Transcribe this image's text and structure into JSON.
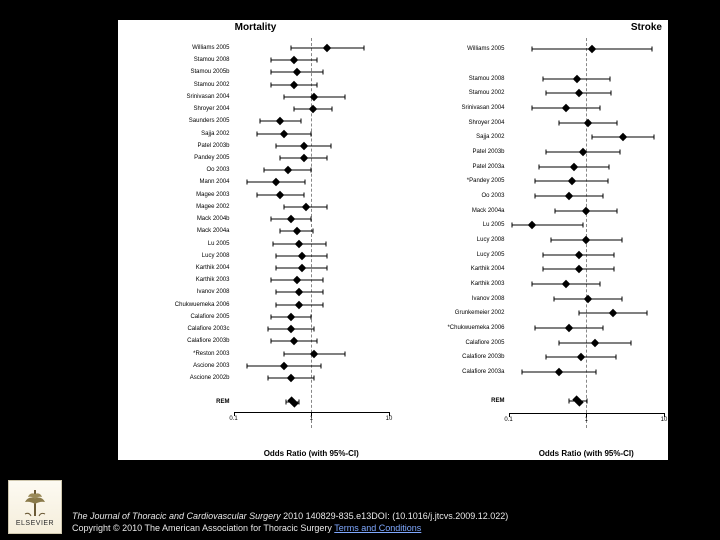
{
  "figure": {
    "background": "#ffffff",
    "panel_left": {
      "title": "Mortality",
      "xlabel": "Odds Ratio (with 95%-CI)",
      "log_range": [
        -1,
        1
      ],
      "ref_x": 1.0,
      "ticks": [
        {
          "v": 0.1,
          "label": "0.1"
        },
        {
          "v": 1,
          "label": "1"
        },
        {
          "v": 10,
          "label": "10"
        }
      ],
      "rows": [
        {
          "label": "Williams 2005",
          "or": 1.6,
          "lo": 0.55,
          "hi": 4.7
        },
        {
          "label": "Stamou 2008",
          "or": 0.6,
          "lo": 0.3,
          "hi": 1.2
        },
        {
          "label": "Stamou 2005b",
          "or": 0.65,
          "lo": 0.3,
          "hi": 1.4
        },
        {
          "label": "Stamou 2002",
          "or": 0.6,
          "lo": 0.3,
          "hi": 1.2
        },
        {
          "label": "Srinivasan 2004",
          "or": 1.1,
          "lo": 0.45,
          "hi": 2.7
        },
        {
          "label": "Shroyer 2004",
          "or": 1.05,
          "lo": 0.6,
          "hi": 1.85
        },
        {
          "label": "Saunders 2005",
          "or": 0.4,
          "lo": 0.22,
          "hi": 0.73
        },
        {
          "label": "Sajja 2002",
          "or": 0.45,
          "lo": 0.2,
          "hi": 1.0
        },
        {
          "label": "Patel 2003b",
          "or": 0.8,
          "lo": 0.35,
          "hi": 1.8
        },
        {
          "label": "Pandey 2005",
          "or": 0.8,
          "lo": 0.4,
          "hi": 1.6
        },
        {
          "label": "Oo 2003",
          "or": 0.5,
          "lo": 0.25,
          "hi": 1.0
        },
        {
          "label": "Mann 2004",
          "or": 0.35,
          "lo": 0.15,
          "hi": 0.82
        },
        {
          "label": "Magee 2003",
          "or": 0.4,
          "lo": 0.2,
          "hi": 0.8
        },
        {
          "label": "Magee 2002",
          "or": 0.85,
          "lo": 0.45,
          "hi": 1.6
        },
        {
          "label": "Mack 2004b",
          "or": 0.55,
          "lo": 0.3,
          "hi": 1.0
        },
        {
          "label": "Mack 2004a",
          "or": 0.65,
          "lo": 0.4,
          "hi": 1.05
        },
        {
          "label": "Lu 2005",
          "or": 0.7,
          "lo": 0.32,
          "hi": 1.55
        },
        {
          "label": "Lucy 2008",
          "or": 0.75,
          "lo": 0.35,
          "hi": 1.6
        },
        {
          "label": "Karthik 2004",
          "or": 0.75,
          "lo": 0.35,
          "hi": 1.6
        },
        {
          "label": "Karthik 2003",
          "or": 0.65,
          "lo": 0.3,
          "hi": 1.4
        },
        {
          "label": "Ivanov 2008",
          "or": 0.7,
          "lo": 0.35,
          "hi": 1.4
        },
        {
          "label": "Chukwuemeka 2006",
          "or": 0.7,
          "lo": 0.35,
          "hi": 1.4
        },
        {
          "label": "Calafiore 2005",
          "or": 0.55,
          "lo": 0.3,
          "hi": 1.0
        },
        {
          "label": "Calafiore 2003c",
          "or": 0.55,
          "lo": 0.28,
          "hi": 1.08
        },
        {
          "label": "Calafiore 2003b",
          "or": 0.6,
          "lo": 0.3,
          "hi": 1.2
        },
        {
          "label": "*Reston 2003",
          "or": 1.1,
          "lo": 0.45,
          "hi": 2.7
        },
        {
          "label": "Ascione 2003",
          "or": 0.45,
          "lo": 0.15,
          "hi": 1.35
        },
        {
          "label": "Ascione 2002b",
          "or": 0.55,
          "lo": 0.28,
          "hi": 1.08
        },
        {
          "gap": true
        },
        {
          "label": "REM",
          "or": 0.58,
          "lo": 0.48,
          "hi": 0.7,
          "summary": true
        }
      ]
    },
    "panel_right": {
      "title": "Stroke",
      "xlabel": "Odds Ratio (with 95%-CI)",
      "log_range": [
        -1,
        1
      ],
      "ref_x": 1.0,
      "ticks": [
        {
          "v": 0.1,
          "label": "0.1"
        },
        {
          "v": 1,
          "label": "1"
        },
        {
          "v": 10,
          "label": "10"
        }
      ],
      "rows": [
        {
          "label": "Williams 2005",
          "or": 1.2,
          "lo": 0.2,
          "hi": 7.0
        },
        {
          "gap": true
        },
        {
          "label": "Stamou 2008",
          "or": 0.75,
          "lo": 0.28,
          "hi": 2.0
        },
        {
          "label": "Stamou 2002",
          "or": 0.8,
          "lo": 0.3,
          "hi": 2.1
        },
        {
          "label": "Srinivasan 2004",
          "or": 0.55,
          "lo": 0.2,
          "hi": 1.5
        },
        {
          "label": "Shroyer 2004",
          "or": 1.05,
          "lo": 0.45,
          "hi": 2.45
        },
        {
          "label": "Sajja 2002",
          "or": 3.0,
          "lo": 1.2,
          "hi": 7.5
        },
        {
          "label": "Patel 2003b",
          "or": 0.9,
          "lo": 0.3,
          "hi": 2.7
        },
        {
          "label": "Patel 2003a",
          "or": 0.7,
          "lo": 0.25,
          "hi": 1.95
        },
        {
          "label": "*Pandey 2005",
          "or": 0.65,
          "lo": 0.22,
          "hi": 1.9
        },
        {
          "label": "Oo 2003",
          "or": 0.6,
          "lo": 0.22,
          "hi": 1.65
        },
        {
          "label": "Mack 2004a",
          "or": 1.0,
          "lo": 0.4,
          "hi": 2.5
        },
        {
          "label": "Lu 2005",
          "or": 0.2,
          "lo": 0.11,
          "hi": 0.9
        },
        {
          "label": "Lucy 2008",
          "or": 1.0,
          "lo": 0.35,
          "hi": 2.85
        },
        {
          "label": "Lucy 2005",
          "or": 0.8,
          "lo": 0.28,
          "hi": 2.3
        },
        {
          "label": "Karthik 2004",
          "or": 0.8,
          "lo": 0.28,
          "hi": 2.3
        },
        {
          "label": "Karthik 2003",
          "or": 0.55,
          "lo": 0.2,
          "hi": 1.5
        },
        {
          "label": "Ivanov 2008",
          "or": 1.05,
          "lo": 0.38,
          "hi": 2.9
        },
        {
          "label": "Grunkemeier 2002",
          "or": 2.2,
          "lo": 0.8,
          "hi": 6.05
        },
        {
          "label": "*Chukwuemeka 2006",
          "or": 0.6,
          "lo": 0.22,
          "hi": 1.65
        },
        {
          "label": "Calafiore 2005",
          "or": 1.3,
          "lo": 0.45,
          "hi": 3.75
        },
        {
          "label": "Calafiore 2003b",
          "or": 0.85,
          "lo": 0.3,
          "hi": 2.4
        },
        {
          "label": "Calafiore 2003a",
          "or": 0.45,
          "lo": 0.15,
          "hi": 1.35
        },
        {
          "gap": true
        },
        {
          "label": "REM",
          "or": 0.78,
          "lo": 0.6,
          "hi": 1.02,
          "summary": true
        }
      ]
    }
  },
  "footer": {
    "logo_brand": "ELSEVIER",
    "line1_ital": "The Journal of Thoracic and Cardiovascular Surgery",
    "line1_rest": " 2010 140829-835.e13DOI: (10.1016/j.jtcvs.2009.12.022)",
    "line2_pre": "Copyright © 2010 The American Association for Thoracic Surgery ",
    "line2_link": "Terms and Conditions"
  }
}
